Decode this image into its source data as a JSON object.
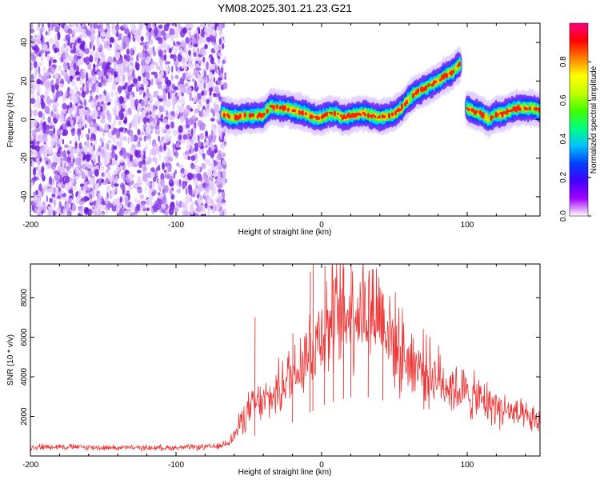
{
  "title": "YM08.2025.301.21.23.G21",
  "colorbar": {
    "label": "Normalized spectral amplitude",
    "ticks": [
      "0.0",
      "0.2",
      "0.4",
      "0.6",
      "0.8"
    ],
    "colors": [
      "#ffffff",
      "#a000ff",
      "#4000ff",
      "#0040ff",
      "#00c0ff",
      "#00ff80",
      "#40ff00",
      "#c0ff00",
      "#ffff00",
      "#ff8000",
      "#ff0000",
      "#ff0080"
    ]
  },
  "chart_data": [
    {
      "type": "heatmap",
      "xlabel": "Height of straight line (km)",
      "ylabel": "Frequency (Hz)",
      "xlim": [
        -200,
        150
      ],
      "ylim": [
        -50,
        50
      ],
      "xticks": [
        -200,
        -100,
        0,
        100
      ],
      "yticks": [
        -40,
        -20,
        0,
        20,
        40
      ],
      "noise_region_x": [
        -200,
        -66
      ],
      "ridge_segments": [
        {
          "x": [
            -68,
            -60,
            -52,
            -45,
            -40,
            -35,
            -30,
            -25,
            -20,
            -15,
            -10,
            -5,
            0,
            5,
            10,
            15,
            20,
            25,
            30,
            35,
            40,
            45,
            50,
            55,
            60,
            65,
            70,
            75,
            80,
            85,
            90,
            95
          ],
          "y": [
            3,
            1,
            2,
            2,
            2,
            7,
            6,
            6,
            5,
            4,
            3,
            1,
            1,
            3,
            3,
            1,
            2,
            3,
            3,
            2,
            1,
            2,
            3,
            6,
            11,
            14,
            16,
            18,
            20,
            23,
            25,
            29
          ]
        },
        {
          "x": [
            100,
            105,
            110,
            115,
            120,
            125,
            130,
            135,
            140,
            145,
            150
          ],
          "y": [
            6,
            4,
            3,
            0,
            3,
            3,
            5,
            6,
            6,
            6,
            5
          ]
        }
      ]
    },
    {
      "type": "line",
      "xlabel": "Height of straight line (km)",
      "ylabel": "SNR (10 * v/v)",
      "xlim": [
        -200,
        150
      ],
      "ylim": [
        0,
        9700
      ],
      "xticks": [
        -200,
        -100,
        0,
        100
      ],
      "yticks": [
        2000,
        4000,
        6000,
        8000
      ],
      "series": [
        {
          "color": "#ee3333",
          "x": [
            -200,
            -180,
            -160,
            -140,
            -120,
            -100,
            -80,
            -70,
            -65,
            -60,
            -55,
            -50,
            -45,
            -40,
            -35,
            -30,
            -25,
            -20,
            -15,
            -10,
            -5,
            0,
            5,
            10,
            15,
            20,
            25,
            30,
            35,
            40,
            45,
            50,
            55,
            60,
            70,
            80,
            90,
            100,
            110,
            120,
            130,
            140,
            150
          ],
          "y": [
            450,
            480,
            430,
            420,
            410,
            420,
            450,
            480,
            700,
            1000,
            1800,
            2300,
            2600,
            2700,
            2900,
            3300,
            3800,
            4200,
            4800,
            5300,
            5800,
            6300,
            6700,
            6900,
            7200,
            7400,
            7500,
            7400,
            7400,
            7300,
            6600,
            5700,
            5200,
            4900,
            4400,
            3900,
            3500,
            3100,
            2800,
            2500,
            2200,
            1900,
            1700
          ]
        }
      ],
      "spikes": [
        {
          "x": -46,
          "y": 7000
        },
        {
          "x": -20,
          "y": 6200
        },
        {
          "x": -8,
          "y": 9300
        },
        {
          "x": -6,
          "y": 9700
        },
        {
          "x": 2,
          "y": 9600
        },
        {
          "x": 8,
          "y": 8900
        },
        {
          "x": 15,
          "y": 9500
        },
        {
          "x": 20,
          "y": 9700
        },
        {
          "x": 32,
          "y": 8900
        },
        {
          "x": 42,
          "y": 8200
        }
      ]
    }
  ]
}
